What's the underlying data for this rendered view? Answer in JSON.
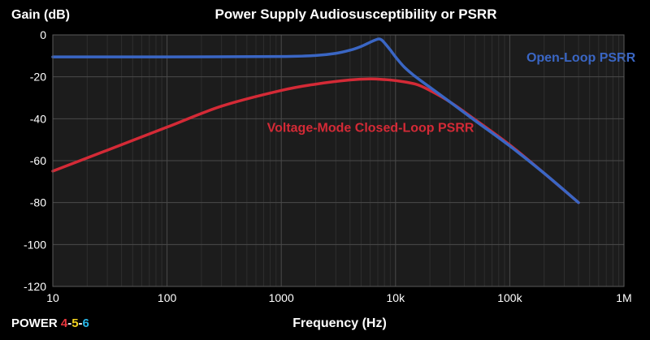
{
  "chart_data": {
    "type": "line",
    "title": "Power Supply Audiosusceptibility or PSRR",
    "ylabel": "Gain (dB)",
    "xlabel": "Frequency (Hz)",
    "x_scale": "log",
    "xlim": [
      10,
      1000000
    ],
    "ylim": [
      -120,
      0
    ],
    "grid": true,
    "x_ticks": [
      {
        "value": 10,
        "label": "10"
      },
      {
        "value": 100,
        "label": "100"
      },
      {
        "value": 1000,
        "label": "1000"
      },
      {
        "value": 10000,
        "label": "10k"
      },
      {
        "value": 100000,
        "label": "100k"
      },
      {
        "value": 1000000,
        "label": "1M"
      }
    ],
    "y_ticks": [
      {
        "value": 0,
        "label": "0"
      },
      {
        "value": -20,
        "label": "-20"
      },
      {
        "value": -40,
        "label": "-40"
      },
      {
        "value": -60,
        "label": "-60"
      },
      {
        "value": -80,
        "label": "-80"
      },
      {
        "value": -100,
        "label": "-100"
      },
      {
        "value": -120,
        "label": "-120"
      }
    ],
    "series": [
      {
        "name": "Open-Loop PSRR",
        "color": "#3a66c4",
        "points": [
          [
            10,
            -10.5
          ],
          [
            100,
            -10.5
          ],
          [
            1000,
            -10.3
          ],
          [
            2000,
            -9.8
          ],
          [
            3000,
            -8.8
          ],
          [
            4000,
            -7.3
          ],
          [
            5000,
            -5.5
          ],
          [
            6000,
            -3.5
          ],
          [
            7000,
            -2.0
          ],
          [
            7500,
            -2.3
          ],
          [
            8000,
            -3.8
          ],
          [
            9000,
            -7.2
          ],
          [
            10000,
            -10.5
          ],
          [
            12000,
            -15.5
          ],
          [
            15000,
            -20.0
          ],
          [
            20000,
            -25.0
          ],
          [
            30000,
            -32.0
          ],
          [
            50000,
            -41.0
          ],
          [
            100000,
            -53.0
          ],
          [
            200000,
            -66.0
          ],
          [
            400000,
            -80.0
          ]
        ]
      },
      {
        "name": "Voltage-Mode Closed-Loop PSRR",
        "color": "#d42a36",
        "points": [
          [
            10,
            -65.0
          ],
          [
            30,
            -55.0
          ],
          [
            100,
            -44.0
          ],
          [
            300,
            -34.0
          ],
          [
            1000,
            -26.5
          ],
          [
            2000,
            -23.5
          ],
          [
            4000,
            -21.5
          ],
          [
            6000,
            -21.0
          ],
          [
            8000,
            -21.3
          ],
          [
            10000,
            -21.8
          ],
          [
            15000,
            -23.5
          ],
          [
            20000,
            -26.5
          ],
          [
            30000,
            -32.0
          ],
          [
            50000,
            -40.5
          ],
          [
            100000,
            -52.5
          ],
          [
            200000,
            -66.0
          ],
          [
            400000,
            -80.0
          ]
        ]
      }
    ],
    "annotations": [
      {
        "text": "Open-Loop PSRR",
        "series": 0,
        "x": 140000,
        "y": -10.5
      },
      {
        "text": "Voltage-Mode Closed-Loop PSRR",
        "series": 1,
        "x": 750,
        "y": -44
      }
    ]
  },
  "brand": {
    "prefix": "POWER ",
    "d1": "4",
    "sep1": "-",
    "d2": "5",
    "sep2": "-",
    "d3": "6",
    "d1_color": "#e8363d",
    "d2_color": "#f2d21e",
    "d3_color": "#29b7e8"
  }
}
